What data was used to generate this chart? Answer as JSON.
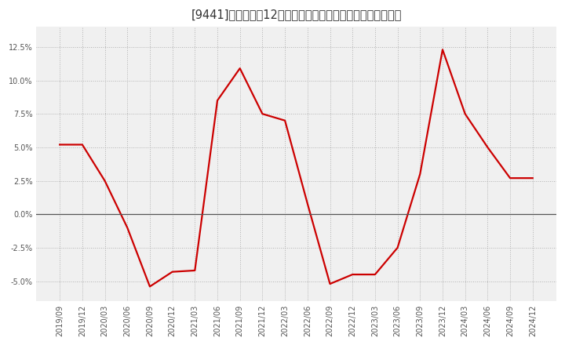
{
  "title": "[9441]　売上高の12か月移動合計の対前年同期増減率の推移",
  "line_color": "#cc0000",
  "background_color": "#ffffff",
  "plot_bg_color": "#f0f0f0",
  "grid_color": "#aaaaaa",
  "zero_line_color": "#555555",
  "axis_label_color": "#555555",
  "x_labels": [
    "2019/09",
    "2019/12",
    "2020/03",
    "2020/06",
    "2020/09",
    "2020/12",
    "2021/03",
    "2021/06",
    "2021/09",
    "2021/12",
    "2022/03",
    "2022/06",
    "2022/09",
    "2022/12",
    "2023/03",
    "2023/06",
    "2023/09",
    "2023/12",
    "2024/03",
    "2024/06",
    "2024/09",
    "2024/12"
  ],
  "y_values": [
    5.2,
    5.2,
    2.5,
    -1.0,
    -5.4,
    -4.3,
    -4.2,
    8.5,
    10.9,
    7.5,
    7.0,
    0.8,
    -5.2,
    -4.5,
    -4.5,
    -2.5,
    3.0,
    12.3,
    7.5,
    5.0,
    2.7,
    2.7
  ],
  "ylim": [
    -6.5,
    14.0
  ],
  "yticks": [
    -5.0,
    -2.5,
    0.0,
    2.5,
    5.0,
    7.5,
    10.0,
    12.5
  ],
  "ytick_labels": [
    "-5.0%",
    "-2.5%",
    "0.0%",
    "2.5%",
    "5.0%",
    "7.5%",
    "10.0%",
    "12.5%"
  ],
  "line_width": 1.6,
  "title_fontsize": 10.5,
  "tick_fontsize": 7.0
}
